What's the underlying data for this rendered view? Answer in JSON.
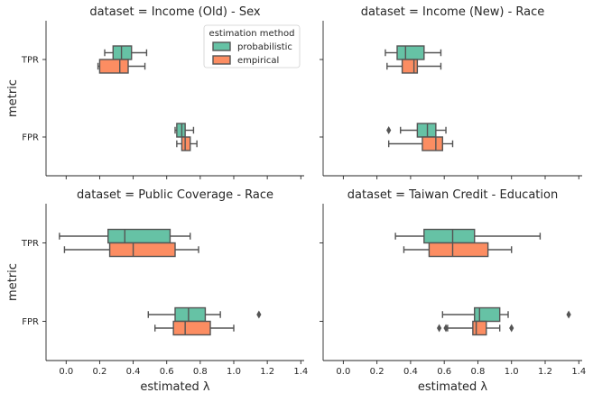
{
  "chart_data": {
    "type": "box",
    "legend": {
      "title": "estimation method",
      "placement": "top-right of first panel",
      "entries": [
        {
          "name": "probabilistic",
          "color": "#66c2a5"
        },
        {
          "name": "empirical",
          "color": "#fc8d62"
        }
      ]
    },
    "xlabel": "estimated λ",
    "ylabel": "metric",
    "xlim": [
      -0.12,
      1.42
    ],
    "xticks": [
      0.0,
      0.2,
      0.4,
      0.6,
      0.8,
      1.0,
      1.2,
      1.4
    ],
    "xtick_labels": [
      "0.0",
      "0.2",
      "0.4",
      "0.6",
      "0.8",
      "1.0",
      "1.2",
      "1.4"
    ],
    "categories": [
      "TPR",
      "FPR"
    ],
    "panels": [
      {
        "title": "dataset = Income (Old) - Sex",
        "boxes": [
          {
            "category": "TPR",
            "series": "probabilistic",
            "whislo": 0.23,
            "q1": 0.28,
            "med": 0.33,
            "q3": 0.39,
            "whishi": 0.48,
            "fliers": []
          },
          {
            "category": "TPR",
            "series": "empirical",
            "whislo": 0.19,
            "q1": 0.2,
            "med": 0.32,
            "q3": 0.37,
            "whishi": 0.47,
            "fliers": []
          },
          {
            "category": "FPR",
            "series": "probabilistic",
            "whislo": 0.65,
            "q1": 0.66,
            "med": 0.69,
            "q3": 0.71,
            "whishi": 0.76,
            "fliers": []
          },
          {
            "category": "FPR",
            "series": "empirical",
            "whislo": 0.66,
            "q1": 0.69,
            "med": 0.71,
            "q3": 0.74,
            "whishi": 0.78,
            "fliers": []
          }
        ]
      },
      {
        "title": "dataset = Income (New) - Race",
        "boxes": [
          {
            "category": "TPR",
            "series": "probabilistic",
            "whislo": 0.25,
            "q1": 0.32,
            "med": 0.37,
            "q3": 0.48,
            "whishi": 0.58,
            "fliers": []
          },
          {
            "category": "TPR",
            "series": "empirical",
            "whislo": 0.26,
            "q1": 0.35,
            "med": 0.42,
            "q3": 0.44,
            "whishi": 0.58,
            "fliers": []
          },
          {
            "category": "FPR",
            "series": "probabilistic",
            "whislo": 0.34,
            "q1": 0.44,
            "med": 0.5,
            "q3": 0.55,
            "whishi": 0.61,
            "fliers": [
              0.27
            ]
          },
          {
            "category": "FPR",
            "series": "empirical",
            "whislo": 0.27,
            "q1": 0.47,
            "med": 0.55,
            "q3": 0.59,
            "whishi": 0.65,
            "fliers": []
          }
        ]
      },
      {
        "title": "dataset = Public Coverage - Race",
        "boxes": [
          {
            "category": "TPR",
            "series": "probabilistic",
            "whislo": -0.04,
            "q1": 0.25,
            "med": 0.35,
            "q3": 0.62,
            "whishi": 0.74,
            "fliers": []
          },
          {
            "category": "TPR",
            "series": "empirical",
            "whislo": -0.01,
            "q1": 0.26,
            "med": 0.4,
            "q3": 0.65,
            "whishi": 0.79,
            "fliers": []
          },
          {
            "category": "FPR",
            "series": "probabilistic",
            "whislo": 0.49,
            "q1": 0.65,
            "med": 0.73,
            "q3": 0.83,
            "whishi": 0.92,
            "fliers": [
              1.15
            ]
          },
          {
            "category": "FPR",
            "series": "empirical",
            "whislo": 0.53,
            "q1": 0.64,
            "med": 0.71,
            "q3": 0.86,
            "whishi": 1.0,
            "fliers": []
          }
        ]
      },
      {
        "title": "dataset = Taiwan Credit - Education",
        "boxes": [
          {
            "category": "TPR",
            "series": "probabilistic",
            "whislo": 0.31,
            "q1": 0.48,
            "med": 0.65,
            "q3": 0.78,
            "whishi": 1.17,
            "fliers": []
          },
          {
            "category": "TPR",
            "series": "empirical",
            "whislo": 0.36,
            "q1": 0.51,
            "med": 0.65,
            "q3": 0.86,
            "whishi": 1.0,
            "fliers": []
          },
          {
            "category": "FPR",
            "series": "probabilistic",
            "whislo": 0.59,
            "q1": 0.78,
            "med": 0.81,
            "q3": 0.93,
            "whishi": 0.98,
            "fliers": [
              1.34
            ]
          },
          {
            "category": "FPR",
            "series": "empirical",
            "whislo": 0.62,
            "q1": 0.77,
            "med": 0.79,
            "q3": 0.85,
            "whishi": 0.93,
            "fliers": [
              0.57,
              0.61,
              1.0
            ]
          }
        ]
      }
    ]
  }
}
